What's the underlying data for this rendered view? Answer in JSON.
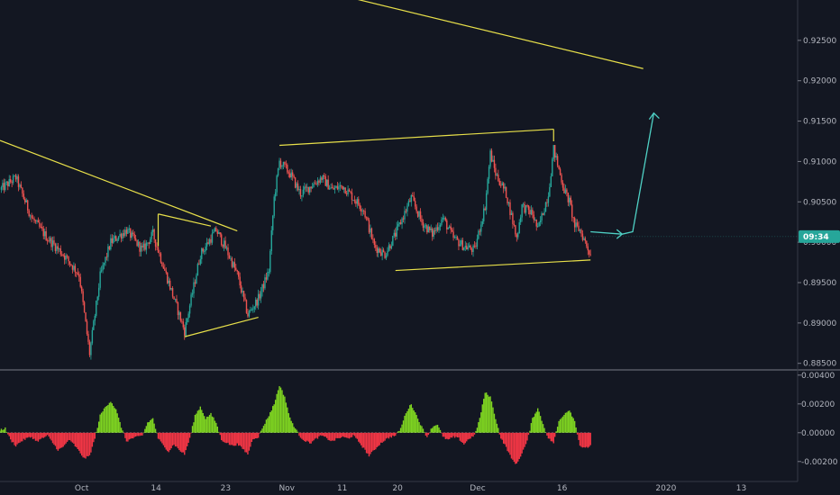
{
  "chart_data": [
    {
      "type": "candlestick",
      "title": "",
      "xlabel": "",
      "ylabel": "",
      "ylim": [
        0.8843,
        0.93
      ],
      "grid": false,
      "date_ticks": [
        "Oct",
        "14",
        "23",
        "Nov",
        "11",
        "20",
        "Dec",
        "16",
        "2020",
        "13"
      ],
      "yticks": [
        0.925,
        0.92,
        0.915,
        0.91,
        0.905,
        0.9,
        0.895,
        0.89,
        0.885
      ],
      "ytick_labels": [
        "0.92500",
        "0.92000",
        "0.91500",
        "0.91000",
        "0.90500",
        "0.90000",
        "0.89500",
        "0.89000",
        "0.88500"
      ],
      "price_badge": {
        "text": "09:34",
        "value": 0.9007,
        "color": "#26a69a"
      },
      "close_series": [
        {
          "d": 0,
          "v": 0.9065
        },
        {
          "d": 3,
          "v": 0.908
        },
        {
          "d": 6,
          "v": 0.903
        },
        {
          "d": 9,
          "v": 0.9005
        },
        {
          "d": 12,
          "v": 0.8985
        },
        {
          "d": 15,
          "v": 0.896
        },
        {
          "d": 17,
          "v": 0.8862
        },
        {
          "d": 19,
          "v": 0.8958
        },
        {
          "d": 21,
          "v": 0.9
        },
        {
          "d": 24,
          "v": 0.9015
        },
        {
          "d": 27,
          "v": 0.899
        },
        {
          "d": 29,
          "v": 0.901
        },
        {
          "d": 32,
          "v": 0.895
        },
        {
          "d": 35,
          "v": 0.889
        },
        {
          "d": 38,
          "v": 0.8985
        },
        {
          "d": 41,
          "v": 0.9015
        },
        {
          "d": 43,
          "v": 0.899
        },
        {
          "d": 45,
          "v": 0.896
        },
        {
          "d": 47,
          "v": 0.891
        },
        {
          "d": 49,
          "v": 0.893
        },
        {
          "d": 51,
          "v": 0.8965
        },
        {
          "d": 52,
          "v": 0.9055
        },
        {
          "d": 53,
          "v": 0.91
        },
        {
          "d": 55,
          "v": 0.9085
        },
        {
          "d": 57,
          "v": 0.906
        },
        {
          "d": 59,
          "v": 0.907
        },
        {
          "d": 61,
          "v": 0.908
        },
        {
          "d": 63,
          "v": 0.9065
        },
        {
          "d": 65,
          "v": 0.907
        },
        {
          "d": 67,
          "v": 0.9055
        },
        {
          "d": 69,
          "v": 0.904
        },
        {
          "d": 71,
          "v": 0.8995
        },
        {
          "d": 73,
          "v": 0.8985
        },
        {
          "d": 75,
          "v": 0.901
        },
        {
          "d": 77,
          "v": 0.904
        },
        {
          "d": 78,
          "v": 0.9055
        },
        {
          "d": 80,
          "v": 0.9025
        },
        {
          "d": 82,
          "v": 0.901
        },
        {
          "d": 84,
          "v": 0.903
        },
        {
          "d": 86,
          "v": 0.9005
        },
        {
          "d": 88,
          "v": 0.8995
        },
        {
          "d": 90,
          "v": 0.899
        },
        {
          "d": 92,
          "v": 0.9045
        },
        {
          "d": 93,
          "v": 0.911
        },
        {
          "d": 94,
          "v": 0.9085
        },
        {
          "d": 96,
          "v": 0.906
        },
        {
          "d": 98,
          "v": 0.9005
        },
        {
          "d": 99,
          "v": 0.9045
        },
        {
          "d": 101,
          "v": 0.9035
        },
        {
          "d": 102,
          "v": 0.9015
        },
        {
          "d": 104,
          "v": 0.906
        },
        {
          "d": 105,
          "v": 0.9115
        },
        {
          "d": 107,
          "v": 0.9065
        },
        {
          "d": 108,
          "v": 0.905
        },
        {
          "d": 109,
          "v": 0.902
        },
        {
          "d": 110,
          "v": 0.9015
        },
        {
          "d": 111,
          "v": 0.9
        },
        {
          "d": 112,
          "v": 0.8985
        }
      ],
      "channel_annotations": {
        "resistance_top": [
          {
            "d": 67,
            "v": 0.9302
          },
          {
            "d": 122,
            "v": 0.9215
          }
        ],
        "resistance_left": [
          {
            "d": 0,
            "v": 0.9126
          },
          {
            "d": 45,
            "v": 0.9014
          }
        ],
        "triangle_upper": [
          {
            "d": 30,
            "v": 0.9035
          },
          {
            "d": 40,
            "v": 0.902
          }
        ],
        "triangle_lower": [
          {
            "d": 35,
            "v": 0.8883
          },
          {
            "d": 49,
            "v": 0.8907
          }
        ],
        "channel_upper": [
          {
            "d": 53,
            "v": 0.912
          },
          {
            "d": 105,
            "v": 0.914
          }
        ],
        "channel_lower": [
          {
            "d": 75,
            "v": 0.8965
          },
          {
            "d": 112,
            "v": 0.8978
          }
        ],
        "projection_arrow": [
          {
            "d": 112,
            "v": 0.9013
          },
          {
            "d": 118,
            "v": 0.901
          },
          {
            "d": 120,
            "v": 0.9013
          },
          {
            "d": 124,
            "v": 0.916
          }
        ]
      }
    },
    {
      "type": "histogram",
      "title": "",
      "ylim": [
        -0.0032,
        0.0043
      ],
      "yticks": [
        0.004,
        0.002,
        0.0,
        -0.002
      ],
      "ytick_labels": [
        "0.00400",
        "0.00200",
        "0.00000",
        "-0.00200"
      ],
      "positive_color": "#7ed321",
      "negative_color": "#f23645",
      "series": [
        {
          "d": 0,
          "v": 0.0002
        },
        {
          "d": 1,
          "v": 0.0003
        },
        {
          "d": 2,
          "v": -0.0005
        },
        {
          "d": 3,
          "v": -0.0009
        },
        {
          "d": 4,
          "v": -0.0006
        },
        {
          "d": 5,
          "v": -0.0004
        },
        {
          "d": 6,
          "v": -0.0003
        },
        {
          "d": 7,
          "v": -0.0006
        },
        {
          "d": 8,
          "v": -0.0004
        },
        {
          "d": 9,
          "v": -0.0002
        },
        {
          "d": 10,
          "v": -0.0007
        },
        {
          "d": 11,
          "v": -0.0012
        },
        {
          "d": 12,
          "v": -0.001
        },
        {
          "d": 13,
          "v": -0.0005
        },
        {
          "d": 14,
          "v": -0.0008
        },
        {
          "d": 15,
          "v": -0.0013
        },
        {
          "d": 16,
          "v": -0.0018
        },
        {
          "d": 17,
          "v": -0.0016
        },
        {
          "d": 18,
          "v": -0.0004
        },
        {
          "d": 19,
          "v": 0.0012
        },
        {
          "d": 20,
          "v": 0.0018
        },
        {
          "d": 21,
          "v": 0.0022
        },
        {
          "d": 22,
          "v": 0.0016
        },
        {
          "d": 23,
          "v": 0.0004
        },
        {
          "d": 24,
          "v": -0.0006
        },
        {
          "d": 25,
          "v": -0.0004
        },
        {
          "d": 26,
          "v": -0.0003
        },
        {
          "d": 27,
          "v": -0.0002
        },
        {
          "d": 28,
          "v": 0.0007
        },
        {
          "d": 29,
          "v": 0.001
        },
        {
          "d": 30,
          "v": -0.0004
        },
        {
          "d": 31,
          "v": -0.0009
        },
        {
          "d": 32,
          "v": -0.0013
        },
        {
          "d": 33,
          "v": -0.0008
        },
        {
          "d": 34,
          "v": -0.0012
        },
        {
          "d": 35,
          "v": -0.0015
        },
        {
          "d": 36,
          "v": -0.0004
        },
        {
          "d": 37,
          "v": 0.0012
        },
        {
          "d": 38,
          "v": 0.0018
        },
        {
          "d": 39,
          "v": 0.001
        },
        {
          "d": 40,
          "v": 0.0013
        },
        {
          "d": 41,
          "v": 0.0007
        },
        {
          "d": 42,
          "v": -0.0005
        },
        {
          "d": 43,
          "v": -0.0007
        },
        {
          "d": 44,
          "v": -0.0009
        },
        {
          "d": 45,
          "v": -0.0008
        },
        {
          "d": 46,
          "v": -0.0011
        },
        {
          "d": 47,
          "v": -0.0015
        },
        {
          "d": 48,
          "v": -0.0004
        },
        {
          "d": 49,
          "v": -0.0003
        },
        {
          "d": 50,
          "v": 0.0005
        },
        {
          "d": 51,
          "v": 0.0012
        },
        {
          "d": 52,
          "v": 0.002
        },
        {
          "d": 53,
          "v": 0.0033
        },
        {
          "d": 54,
          "v": 0.0025
        },
        {
          "d": 55,
          "v": 0.001
        },
        {
          "d": 56,
          "v": 0.0003
        },
        {
          "d": 57,
          "v": -0.0003
        },
        {
          "d": 58,
          "v": -0.0006
        },
        {
          "d": 59,
          "v": -0.0007
        },
        {
          "d": 60,
          "v": -0.0004
        },
        {
          "d": 61,
          "v": -0.0002
        },
        {
          "d": 62,
          "v": -0.0004
        },
        {
          "d": 63,
          "v": -0.0006
        },
        {
          "d": 64,
          "v": -0.0004
        },
        {
          "d": 65,
          "v": -0.0003
        },
        {
          "d": 66,
          "v": -0.0004
        },
        {
          "d": 67,
          "v": -0.0002
        },
        {
          "d": 68,
          "v": -0.0006
        },
        {
          "d": 69,
          "v": -0.0011
        },
        {
          "d": 70,
          "v": -0.0016
        },
        {
          "d": 71,
          "v": -0.0012
        },
        {
          "d": 72,
          "v": -0.0008
        },
        {
          "d": 73,
          "v": -0.0005
        },
        {
          "d": 74,
          "v": -0.0003
        },
        {
          "d": 75,
          "v": -0.0002
        },
        {
          "d": 76,
          "v": 0.0003
        },
        {
          "d": 77,
          "v": 0.0014
        },
        {
          "d": 78,
          "v": 0.002
        },
        {
          "d": 79,
          "v": 0.0012
        },
        {
          "d": 80,
          "v": 0.0004
        },
        {
          "d": 81,
          "v": -0.0003
        },
        {
          "d": 82,
          "v": 0.0004
        },
        {
          "d": 83,
          "v": 0.0006
        },
        {
          "d": 84,
          "v": -0.0003
        },
        {
          "d": 85,
          "v": -0.0005
        },
        {
          "d": 86,
          "v": -0.0003
        },
        {
          "d": 87,
          "v": -0.0004
        },
        {
          "d": 88,
          "v": -0.0008
        },
        {
          "d": 89,
          "v": -0.0004
        },
        {
          "d": 90,
          "v": -0.0002
        },
        {
          "d": 91,
          "v": 0.001
        },
        {
          "d": 92,
          "v": 0.0028
        },
        {
          "d": 93,
          "v": 0.0025
        },
        {
          "d": 94,
          "v": 0.001
        },
        {
          "d": 95,
          "v": -0.0004
        },
        {
          "d": 96,
          "v": -0.001
        },
        {
          "d": 97,
          "v": -0.0018
        },
        {
          "d": 98,
          "v": -0.0022
        },
        {
          "d": 99,
          "v": -0.0014
        },
        {
          "d": 100,
          "v": -0.0006
        },
        {
          "d": 101,
          "v": 0.001
        },
        {
          "d": 102,
          "v": 0.0017
        },
        {
          "d": 103,
          "v": 0.0006
        },
        {
          "d": 104,
          "v": -0.0004
        },
        {
          "d": 105,
          "v": -0.0007
        },
        {
          "d": 106,
          "v": 0.0008
        },
        {
          "d": 107,
          "v": 0.0013
        },
        {
          "d": 108,
          "v": 0.0016
        },
        {
          "d": 109,
          "v": 0.0008
        },
        {
          "d": 110,
          "v": -0.0009
        },
        {
          "d": 111,
          "v": -0.0011
        },
        {
          "d": 112,
          "v": -0.0009
        }
      ]
    }
  ]
}
